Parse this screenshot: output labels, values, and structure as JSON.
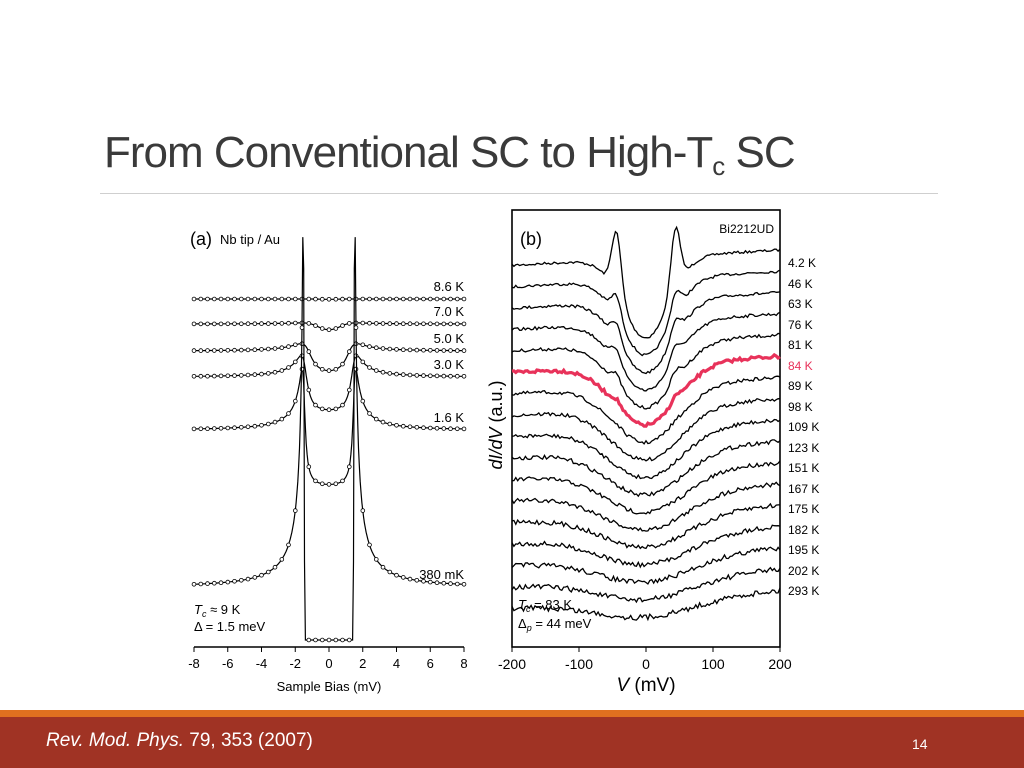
{
  "slide": {
    "title_main": "From Conventional SC to High-T",
    "title_sub": "c",
    "title_end": " SC",
    "citation_journal": "Rev. Mod. Phys.",
    "citation_rest": " 79, 353 (2007)",
    "page_number": "14"
  },
  "colors": {
    "title": "#3a3a3a",
    "footer_bar": "#a03324",
    "footer_accent": "#e0701f",
    "highlight_curve": "#e8325a"
  },
  "chart_data": [
    {
      "type": "line",
      "panel_label": "(a)",
      "panel_title": "Nb tip / Au",
      "xlabel": "Sample Bias  (mV)",
      "xlim": [
        -8,
        8
      ],
      "x_ticks": [
        "-8",
        "-6",
        "-4",
        "-2",
        "0",
        "2",
        "4",
        "6",
        "8"
      ],
      "gap_mV": 1.5,
      "series": [
        {
          "name": "8.6 K",
          "temperature_K": 8.6
        },
        {
          "name": "7.0 K",
          "temperature_K": 7.0
        },
        {
          "name": "5.0 K",
          "temperature_K": 5.0
        },
        {
          "name": "3.0 K",
          "temperature_K": 3.0
        },
        {
          "name": "1.6 K",
          "temperature_K": 1.6
        },
        {
          "name": "380 mK",
          "temperature_K": 0.38
        }
      ],
      "annotation_line1": "T",
      "annotation_line1_sub": "c",
      "annotation_line1_rest": " ≈ 9 K",
      "annotation_line2": "Δ = 1.5 meV"
    },
    {
      "type": "line",
      "panel_label": "(b)",
      "panel_title": "Bi2212UD",
      "xlabel_italic": "V",
      "xlabel_rest": "  (mV)",
      "ylabel_italic": "dI/dV",
      "ylabel_rest": "  (a.u.)",
      "xlim": [
        -200,
        200
      ],
      "x_ticks": [
        "-200",
        "-100",
        "0",
        "100",
        "200"
      ],
      "pseudogap_meV": 44,
      "highlight_series": "84 K",
      "series": [
        {
          "name": "4.2 K",
          "temperature_K": 4.2
        },
        {
          "name": "46 K",
          "temperature_K": 46
        },
        {
          "name": "63 K",
          "temperature_K": 63
        },
        {
          "name": "76 K",
          "temperature_K": 76
        },
        {
          "name": "81 K",
          "temperature_K": 81
        },
        {
          "name": "84 K",
          "temperature_K": 84
        },
        {
          "name": "89 K",
          "temperature_K": 89
        },
        {
          "name": "98 K",
          "temperature_K": 98
        },
        {
          "name": "109 K",
          "temperature_K": 109
        },
        {
          "name": "123 K",
          "temperature_K": 123
        },
        {
          "name": "151 K",
          "temperature_K": 151
        },
        {
          "name": "167 K",
          "temperature_K": 167
        },
        {
          "name": "175 K",
          "temperature_K": 175
        },
        {
          "name": "182 K",
          "temperature_K": 182
        },
        {
          "name": "195 K",
          "temperature_K": 195
        },
        {
          "name": "202 K",
          "temperature_K": 202
        },
        {
          "name": "293 K",
          "temperature_K": 293
        }
      ],
      "annotation_line1": "T",
      "annotation_line1_sub": "c",
      "annotation_line1_rest": " = 83 K",
      "annotation_line2": "Δ",
      "annotation_line2_sub": "p",
      "annotation_line2_rest": " = 44 meV"
    }
  ]
}
